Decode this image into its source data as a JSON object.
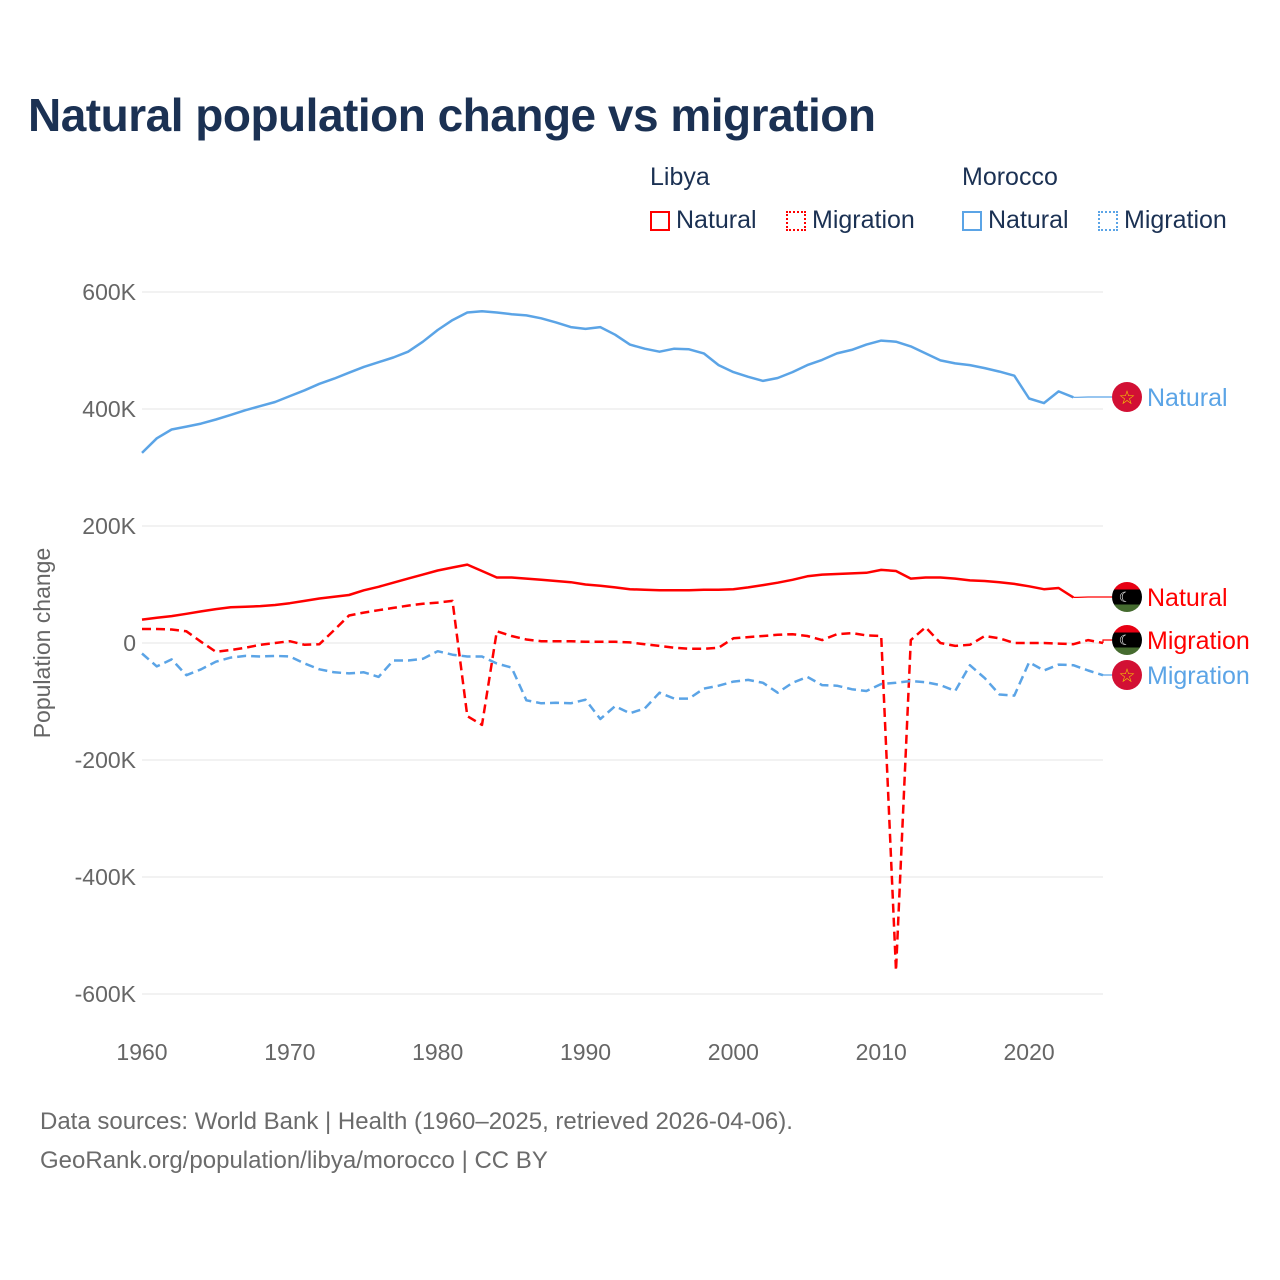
{
  "title": "Natural population change vs migration",
  "legend": {
    "groups": [
      {
        "name": "Libya",
        "color": "#ff0000",
        "items": [
          "Natural",
          "Migration"
        ]
      },
      {
        "name": "Morocco",
        "color": "#5ba4e6",
        "items": [
          "Natural",
          "Migration"
        ]
      }
    ]
  },
  "footer": {
    "line1": "Data sources: World Bank | Health (1960–2025, retrieved 2026-04-06).",
    "line2": "GeoRank.org/population/libya/morocco | CC BY"
  },
  "chart_data": {
    "type": "line",
    "title": "Natural population change vs migration",
    "xlabel": "",
    "ylabel": "Population change",
    "xlim": [
      1960,
      2025
    ],
    "ylim": [
      -600000,
      600000
    ],
    "x_ticks": [
      1960,
      1970,
      1980,
      1990,
      2000,
      2010,
      2020
    ],
    "x_tick_labels": [
      "1960",
      "1970",
      "1980",
      "1990",
      "2000",
      "2010",
      "2020"
    ],
    "y_ticks": [
      600000,
      400000,
      200000,
      0,
      -200000,
      -400000,
      -600000
    ],
    "y_tick_labels": [
      "600K",
      "400K",
      "200K",
      "0",
      "-200K",
      "-400K",
      "-600K"
    ],
    "grid": true,
    "series": [
      {
        "name": "Natural",
        "country": "Libya",
        "end_label": "Natural",
        "color": "#ff0000",
        "dash": "solid",
        "start_year": 1960,
        "values_k": [
          40,
          43,
          46,
          50,
          54,
          58,
          61,
          62,
          63,
          65,
          68,
          72,
          76,
          79,
          82,
          90,
          96,
          103,
          110,
          117,
          124,
          129,
          134,
          123,
          112,
          112,
          110,
          108,
          106,
          104,
          100,
          98,
          95,
          92,
          91,
          90,
          90,
          90,
          91,
          91,
          92,
          95,
          99,
          103,
          108,
          114,
          117,
          118,
          119,
          120,
          125,
          123,
          110,
          112,
          112,
          110,
          107,
          106,
          104,
          101,
          97,
          92,
          94,
          78
        ]
      },
      {
        "name": "Migration",
        "country": "Libya",
        "end_label": "Migration",
        "color": "#ff0000",
        "dash": "dashed",
        "start_year": 1960,
        "values_k": [
          24,
          24,
          23,
          20,
          2,
          -15,
          -12,
          -8,
          -3,
          0,
          3,
          -3,
          -2,
          22,
          47,
          52,
          56,
          60,
          64,
          67,
          69,
          72,
          -125,
          -140,
          20,
          12,
          6,
          3,
          3,
          3,
          2,
          2,
          2,
          1,
          -2,
          -5,
          -8,
          -10,
          -10,
          -8,
          8,
          10,
          12,
          14,
          15,
          12,
          5,
          15,
          17,
          13,
          12,
          -560,
          5,
          27,
          0,
          -5,
          -3,
          12,
          8,
          0,
          0,
          0,
          -1,
          -2,
          5,
          0
        ]
      },
      {
        "name": "Natural",
        "country": "Morocco",
        "end_label": "Natural",
        "color": "#5ba4e6",
        "dash": "solid",
        "start_year": 1960,
        "values_k": [
          325,
          350,
          365,
          370,
          375,
          382,
          390,
          398,
          405,
          412,
          422,
          432,
          443,
          452,
          462,
          472,
          480,
          488,
          498,
          515,
          535,
          552,
          565,
          567,
          565,
          562,
          560,
          555,
          548,
          540,
          537,
          540,
          527,
          510,
          503,
          498,
          503,
          502,
          495,
          475,
          463,
          455,
          448,
          453,
          463,
          475,
          484,
          495,
          501,
          510,
          517,
          515,
          507,
          495,
          483,
          478,
          475,
          470,
          464,
          457,
          418,
          410,
          430,
          420
        ]
      },
      {
        "name": "Migration",
        "country": "Morocco",
        "end_label": "Migration",
        "color": "#5ba4e6",
        "dash": "dashed",
        "start_year": 1960,
        "values_k": [
          -18,
          -40,
          -28,
          -55,
          -45,
          -32,
          -25,
          -22,
          -23,
          -22,
          -23,
          -35,
          -45,
          -50,
          -52,
          -50,
          -58,
          -30,
          -30,
          -27,
          -14,
          -20,
          -23,
          -23,
          -35,
          -42,
          -98,
          -103,
          -102,
          -103,
          -97,
          -130,
          -108,
          -120,
          -112,
          -85,
          -95,
          -95,
          -78,
          -73,
          -66,
          -63,
          -68,
          -85,
          -68,
          -58,
          -72,
          -73,
          -79,
          -82,
          -70,
          -68,
          -65,
          -67,
          -72,
          -82,
          -38,
          -60,
          -88,
          -90,
          -33,
          -47,
          -37,
          -38,
          -47,
          -55
        ]
      }
    ]
  }
}
